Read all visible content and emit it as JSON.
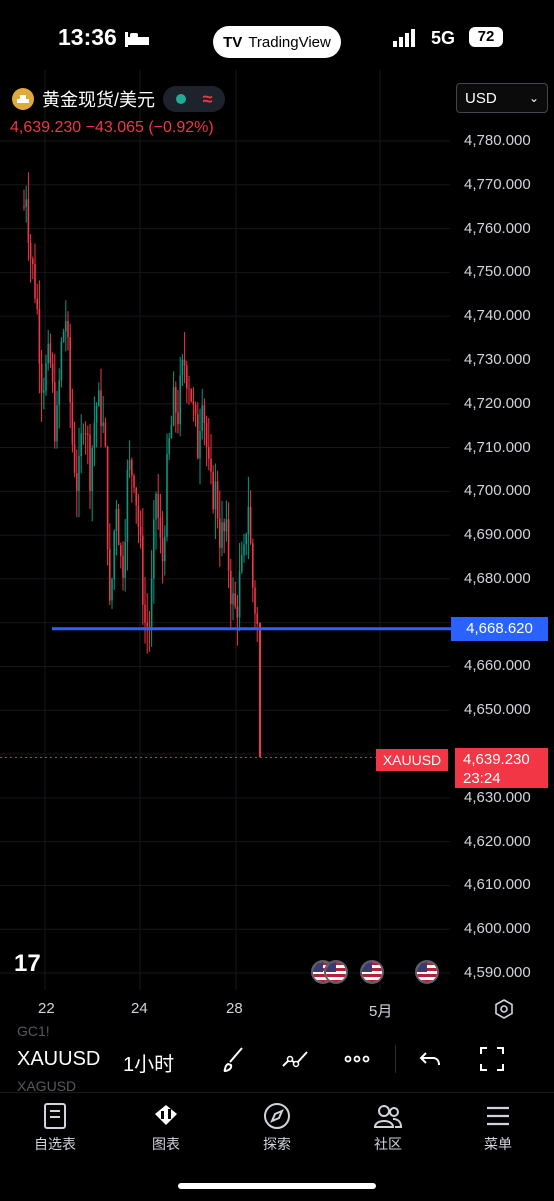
{
  "status_bar": {
    "time": "13:36",
    "app_pill": "TradingView",
    "network": "5G",
    "battery": "72"
  },
  "header": {
    "symbol_name": "黄金现货/美元",
    "price_line": "4,639.230  −43.065 (−0.92%)",
    "currency": "USD",
    "currency_chevron": "⌄"
  },
  "chart_data": {
    "type": "candlestick",
    "interval": "1小时",
    "ylim": [
      4585,
      4785
    ],
    "y_ticks": [
      "4,780.000",
      "4,770.000",
      "4,760.000",
      "4,750.000",
      "4,740.000",
      "4,730.000",
      "4,720.000",
      "4,710.000",
      "4,700.000",
      "4,690.000",
      "4,680.000",
      "4,660.000",
      "4,650.000",
      "4,630.000",
      "4,620.000",
      "4,610.000",
      "4,600.000",
      "4,590.000"
    ],
    "x_ticks": [
      "22",
      "24",
      "28",
      "5月"
    ],
    "horizontal_line": {
      "value": 4668.62,
      "label": "4,668.620",
      "color": "#2962ff"
    },
    "current_price": {
      "symbol": "XAUUSD",
      "value": "4,639.230",
      "countdown": "23:24",
      "color": "#f23645"
    },
    "up_color": "#089981",
    "down_color": "#f23645"
  },
  "toolbar": {
    "symbol": "XAUUSD",
    "interval": "1小时",
    "gc_label": "GC1!",
    "xagusd_label": "XAGUSD"
  },
  "nav": [
    {
      "label": "自选表",
      "icon": "watchlist-icon"
    },
    {
      "label": "图表",
      "icon": "chart-icon"
    },
    {
      "label": "探索",
      "icon": "compass-icon"
    },
    {
      "label": "社区",
      "icon": "community-icon"
    },
    {
      "label": "菜单",
      "icon": "menu-icon"
    }
  ]
}
